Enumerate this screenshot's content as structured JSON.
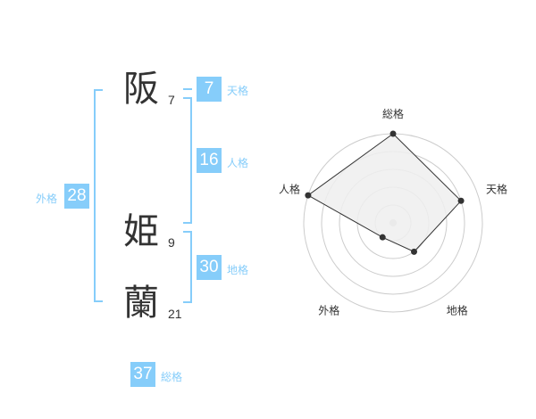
{
  "name": {
    "chars": [
      {
        "char": "阪",
        "strokes": "7"
      },
      {
        "char": "姫",
        "strokes": "9"
      },
      {
        "char": "蘭",
        "strokes": "21"
      }
    ]
  },
  "fortunes": {
    "tenkaku": {
      "label": "天格",
      "value": "7"
    },
    "jinkaku": {
      "label": "人格",
      "value": "16"
    },
    "chikaku": {
      "label": "地格",
      "value": "30"
    },
    "gaikaku": {
      "label": "外格",
      "value": "28"
    },
    "soukaku": {
      "label": "総格",
      "value": "37"
    }
  },
  "colors": {
    "accent": "#86cdfa",
    "radar_fill": "#eeeeee",
    "radar_line": "#333333",
    "grid": "#cccccc"
  },
  "chart_data": {
    "type": "radar",
    "axes": [
      "総格",
      "天格",
      "地格",
      "外格",
      "人格"
    ],
    "values": [
      5,
      4,
      2,
      1,
      5
    ],
    "range": [
      0,
      5
    ],
    "rings": 5
  }
}
